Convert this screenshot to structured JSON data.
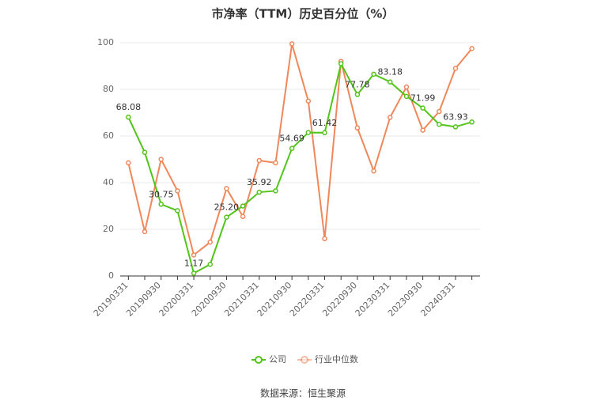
{
  "chart_data": {
    "type": "line",
    "title": "市净率（TTM）历史百分位（%）",
    "source": "数据来源：恒生聚源",
    "categories": [
      "20190331",
      null,
      "20190930",
      null,
      "20200331",
      null,
      "20200930",
      null,
      "20210331",
      null,
      "20210930",
      null,
      "20220331",
      null,
      "20220930",
      null,
      "20230331",
      null,
      "20230930",
      null,
      "20240331",
      null
    ],
    "ylim": [
      0,
      100
    ],
    "yticks": [
      0,
      20,
      40,
      60,
      80,
      100
    ],
    "grid": true,
    "legend": "bottom",
    "series": [
      {
        "name": "公司",
        "color": "#52c41a",
        "values": [
          68.08,
          53,
          30.75,
          28,
          1.17,
          5,
          25.2,
          30,
          35.92,
          36.5,
          54.69,
          61.5,
          61.42,
          91,
          77.78,
          86.5,
          83.18,
          77,
          71.99,
          65,
          63.93,
          66
        ],
        "value_labels": [
          "68.08",
          null,
          "30.75",
          null,
          "1.17",
          null,
          "25.20",
          null,
          "35.92",
          null,
          "54.69",
          null,
          "61.42",
          null,
          "77.78",
          null,
          "83.18",
          null,
          "71.99",
          null,
          "63.93",
          null
        ]
      },
      {
        "name": "行业中位数",
        "color": "#f0875a",
        "values": [
          48.5,
          19,
          50,
          36.5,
          9,
          14.5,
          37.5,
          25.5,
          49.5,
          48.5,
          99.5,
          75,
          16,
          92,
          63.5,
          45,
          68,
          81,
          62.5,
          70.5,
          89,
          97.5
        ]
      }
    ]
  }
}
